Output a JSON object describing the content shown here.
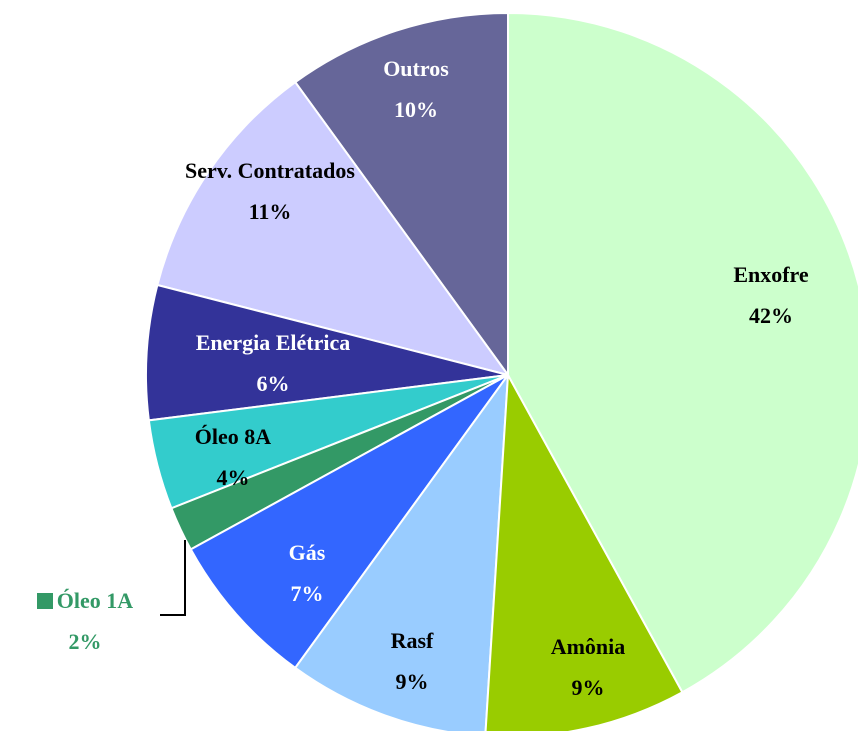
{
  "chart_data": {
    "type": "pie",
    "categories": [
      "Enxofre",
      "Amônia",
      "Rasf",
      "Gás",
      "Óleo 1A",
      "Óleo 8A",
      "Energia Elétrica",
      "Serv. Contratados",
      "Outros"
    ],
    "values": [
      42,
      9,
      9,
      7,
      2,
      4,
      6,
      11,
      10
    ],
    "value_labels": [
      "42%",
      "9%",
      "9%",
      "7%",
      "2%",
      "4%",
      "6%",
      "11%",
      "10%"
    ],
    "colors": [
      "#ccffcc",
      "#99cc00",
      "#99ccff",
      "#3366ff",
      "#339966",
      "#33cccc",
      "#333399",
      "#ccccff",
      "#666699"
    ]
  }
}
